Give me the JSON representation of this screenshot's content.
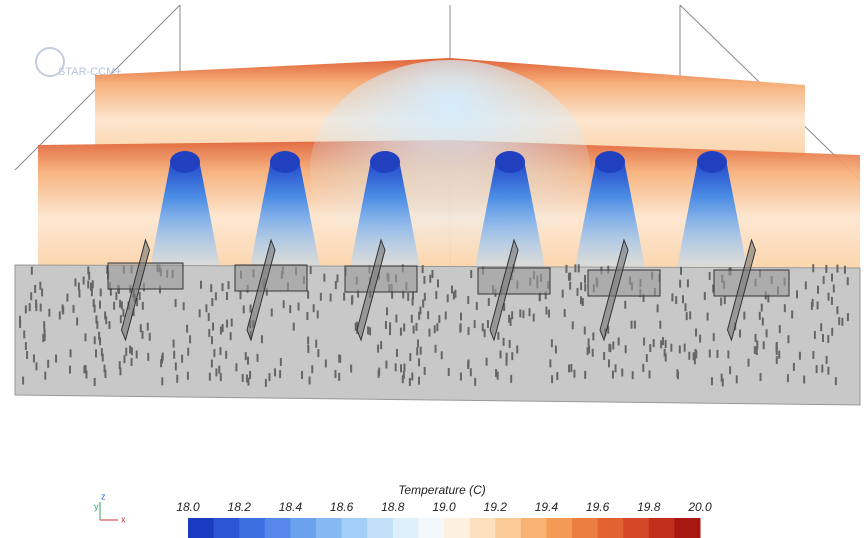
{
  "logo": "STAR-CCM+",
  "triad": {
    "z": "z",
    "y": "y",
    "x": "x"
  },
  "colorbar": {
    "title": "Temperature (C)",
    "ticks": [
      "18.0",
      "18.2",
      "18.4",
      "18.6",
      "18.8",
      "19.0",
      "19.2",
      "19.4",
      "19.6",
      "19.8",
      "20.0"
    ]
  }
}
